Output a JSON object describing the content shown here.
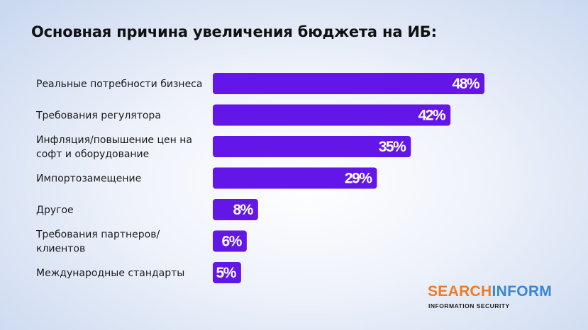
{
  "chart_data": {
    "type": "bar",
    "orientation": "horizontal",
    "title": "Основная причина увеличения бюджета на ИБ:",
    "categories": [
      [
        "Реальные потребности бизнеса"
      ],
      [
        "Требования регулятора"
      ],
      [
        "Инфляция/повышение цен на",
        "софт и оборудование"
      ],
      [
        "Импортозамещение"
      ],
      [
        "Другое"
      ],
      [
        "Требования партнеров/",
        "клиентов"
      ],
      [
        "Международные стандарты"
      ]
    ],
    "values": [
      48,
      42,
      35,
      29,
      8,
      6,
      5
    ],
    "value_labels": [
      "48%",
      "42%",
      "35%",
      "29%",
      "8%",
      "6%",
      "5%"
    ],
    "unit": "%",
    "xlim": [
      0,
      48
    ],
    "bar_color": "#6316e8"
  },
  "brand": {
    "name_part1": "SEARCH",
    "name_part2": "INFORM",
    "tagline": "INFORMATION SECURITY",
    "color_orange": "#f07a23",
    "color_blue": "#3a86d6"
  }
}
